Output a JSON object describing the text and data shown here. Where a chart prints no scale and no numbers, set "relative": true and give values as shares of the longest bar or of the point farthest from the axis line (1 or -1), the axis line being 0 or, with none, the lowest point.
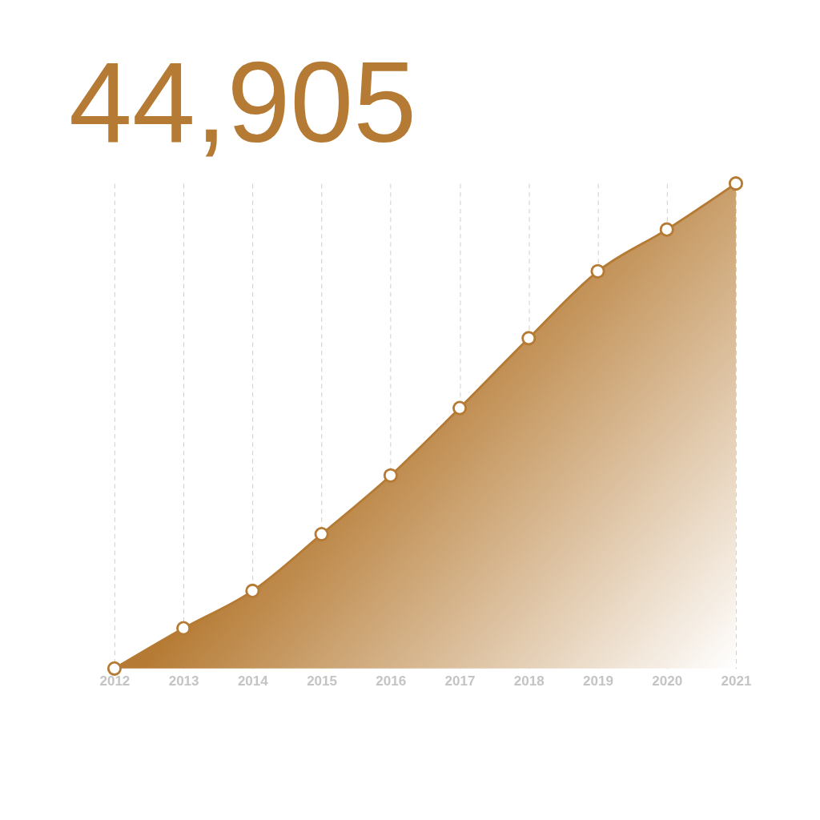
{
  "chart_data": {
    "type": "area",
    "title": "44,905",
    "categories": [
      "2012",
      "2013",
      "2014",
      "2015",
      "2016",
      "2017",
      "2018",
      "2019",
      "2020",
      "2021"
    ],
    "series": [
      {
        "color": "#b57a33",
        "values": [
          0,
          0.083,
          0.16,
          0.277,
          0.398,
          0.537,
          0.681,
          0.819,
          0.905,
          1
        ]
      }
    ],
    "relative": true,
    "grid": "x",
    "marker": "circle"
  }
}
